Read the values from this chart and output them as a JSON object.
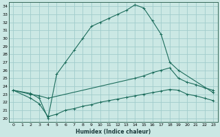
{
  "xlabel": "Humidex (Indice chaleur)",
  "bg_color": "#cbe8e4",
  "grid_color": "#a0cccc",
  "line_color": "#1a6b5a",
  "xlim": [
    -0.5,
    23.5
  ],
  "ylim": [
    19.5,
    34.5
  ],
  "xtick_labels": [
    "0",
    "1",
    "2",
    "3",
    "4",
    "5",
    "6",
    "7",
    "8",
    "9",
    "10",
    "11",
    "12",
    "13",
    "14",
    "15",
    "16",
    "17",
    "18",
    "19",
    "20",
    "21",
    "22",
    "23"
  ],
  "ytick_values": [
    20,
    21,
    22,
    23,
    24,
    25,
    26,
    27,
    28,
    29,
    30,
    31,
    32,
    33,
    34
  ],
  "line1_x": [
    0,
    2,
    3,
    4,
    5,
    6,
    7,
    8,
    9,
    10,
    11,
    12,
    13,
    14,
    15,
    16,
    17,
    18,
    19,
    23
  ],
  "line1_y": [
    23.5,
    23.1,
    22.5,
    20.0,
    25.5,
    27.0,
    28.5,
    30.0,
    31.5,
    32.0,
    32.5,
    33.0,
    33.5,
    34.2,
    33.8,
    32.2,
    30.5,
    27.0,
    26.0,
    23.2
  ],
  "line2_x": [
    0,
    2,
    3,
    4,
    14,
    15,
    16,
    17,
    18,
    19,
    20,
    21,
    22,
    23
  ],
  "line2_y": [
    23.5,
    23.0,
    22.8,
    22.5,
    25.0,
    25.3,
    25.7,
    26.0,
    26.3,
    25.0,
    24.5,
    24.2,
    23.8,
    23.5
  ],
  "line3_x": [
    0,
    2,
    3,
    4,
    5,
    6,
    7,
    8,
    9,
    10,
    11,
    12,
    13,
    14,
    15,
    16,
    17,
    18,
    19,
    20,
    21,
    22,
    23
  ],
  "line3_y": [
    23.5,
    22.5,
    21.8,
    20.2,
    20.5,
    21.0,
    21.2,
    21.5,
    21.7,
    22.0,
    22.2,
    22.4,
    22.6,
    22.8,
    23.0,
    23.2,
    23.4,
    23.6,
    23.5,
    23.0,
    22.8,
    22.5,
    22.2
  ]
}
